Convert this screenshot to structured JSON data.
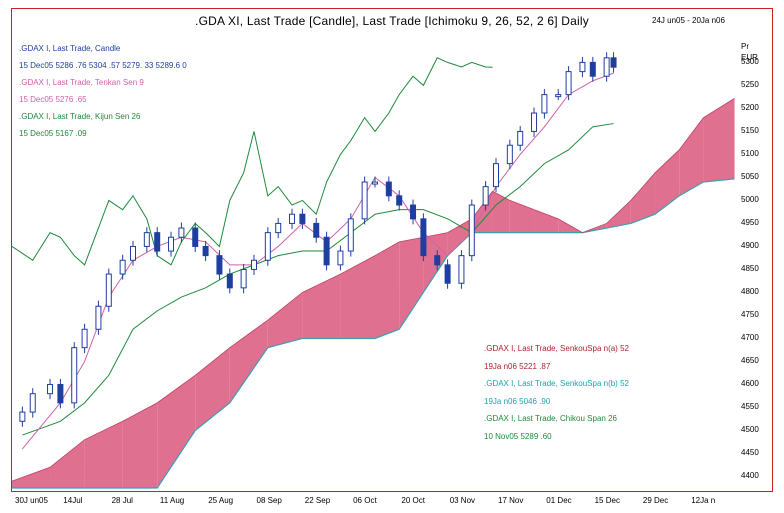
{
  "header": {
    "title": ".GDA XI, Last Trade [Candle], Last Trade [Ichimoku 9, 26, 52, 2  6] Daily",
    "date_range": "24J un05 - 20Ja   n06"
  },
  "legend_top": [
    {
      "text": ".GDAX I, Last Trade, Candle",
      "color": "#1f3fa0"
    },
    {
      "text": "15 Dec05 5286   .76 5304   .57 5279. 33 5289.6 0",
      "color": "#1f3fa0"
    },
    {
      "text": ".GDAX I, Last Trade, Tenkan Sen 9",
      "color": "#d060a8"
    },
    {
      "text": "15 Dec05 5276   .65",
      "color": "#d060a8"
    },
    {
      "text": ".GDAX I, Last Trade, Kijun Sen 26",
      "color": "#1e8a3a"
    },
    {
      "text": "15 Dec05 5167   .09",
      "color": "#1e8a3a"
    }
  ],
  "legend_bottom": [
    {
      "text": ".GDAX I, Last Trade, SenkouSpa   n(a) 52",
      "color": "#b02030"
    },
    {
      "text": "19Ja  n06 5221   .87",
      "color": "#b02030"
    },
    {
      "text": ".GDAX I, Last Trade, SenkouSpa   n(b) 52",
      "color": "#20a0b0"
    },
    {
      "text": "19Ja  n06 5046   .90",
      "color": "#20a0b0"
    },
    {
      "text": ".GDAX I, Last Trade, Chikou Span 26",
      "color": "#1e8a3a"
    },
    {
      "text": "10 Nov05 5289   .60",
      "color": "#1e8a3a"
    }
  ],
  "y_axis": {
    "unit_line1": "Pr",
    "unit_line2": "EUR",
    "ticks": [
      "5300",
      "5250",
      "5200",
      "5150",
      "5100",
      "5050",
      "5000",
      "4950",
      "4900",
      "4850",
      "4800",
      "4750",
      "4700",
      "4650",
      "4600",
      "4550",
      "4500",
      "4450",
      "4400"
    ]
  },
  "x_axis": {
    "ticks": [
      "30J un05",
      "14Jul",
      "28 Jul",
      "11 Aug",
      "25 Aug",
      "08 Sep",
      "22 Sep",
      "06 Oct",
      "20 Oct",
      "03 Nov",
      "17 Nov",
      "01 Dec",
      "15 Dec",
      "29 Dec",
      "12Ja n"
    ]
  },
  "colors": {
    "frame": "#cc2020",
    "candle": "#1f3fa0",
    "tenkan": "#d060a8",
    "kijun": "#1e8a3a",
    "chikou": "#1e8a3a",
    "cloud_bull": "#e07090",
    "cloud_bear": "#40c0d0",
    "span_b_edge": "#3aa0b0"
  },
  "chart_data": {
    "type": "candlestick",
    "title": ".GDA XI, Last Trade [Candle], Last Trade [Ichimoku 9, 26, 52, 2  6] Daily",
    "xlabel": "",
    "ylabel": "Pr EUR",
    "ylim": [
      4375,
      5340
    ],
    "x_start": "2005-06-24",
    "x_end": "2006-01-20",
    "close_series": {
      "name": ".GDAX I, Last Trade, Candle",
      "points": [
        [
          "2005-06-27",
          4540
        ],
        [
          "2005-06-30",
          4580
        ],
        [
          "2005-07-05",
          4600
        ],
        [
          "2005-07-08",
          4560
        ],
        [
          "2005-07-12",
          4680
        ],
        [
          "2005-07-15",
          4720
        ],
        [
          "2005-07-19",
          4770
        ],
        [
          "2005-07-22",
          4840
        ],
        [
          "2005-07-26",
          4870
        ],
        [
          "2005-07-29",
          4900
        ],
        [
          "2005-08-02",
          4930
        ],
        [
          "2005-08-05",
          4890
        ],
        [
          "2005-08-09",
          4920
        ],
        [
          "2005-08-12",
          4940
        ],
        [
          "2005-08-16",
          4900
        ],
        [
          "2005-08-19",
          4880
        ],
        [
          "2005-08-23",
          4840
        ],
        [
          "2005-08-26",
          4810
        ],
        [
          "2005-08-30",
          4850
        ],
        [
          "2005-09-02",
          4870
        ],
        [
          "2005-09-06",
          4930
        ],
        [
          "2005-09-09",
          4950
        ],
        [
          "2005-09-13",
          4970
        ],
        [
          "2005-09-16",
          4950
        ],
        [
          "2005-09-20",
          4920
        ],
        [
          "2005-09-23",
          4860
        ],
        [
          "2005-09-27",
          4890
        ],
        [
          "2005-09-30",
          4960
        ],
        [
          "2005-10-04",
          5040
        ],
        [
          "2005-10-07",
          5040
        ],
        [
          "2005-10-11",
          5010
        ],
        [
          "2005-10-14",
          4990
        ],
        [
          "2005-10-18",
          4960
        ],
        [
          "2005-10-21",
          4880
        ],
        [
          "2005-10-25",
          4860
        ],
        [
          "2005-10-28",
          4820
        ],
        [
          "2005-11-01",
          4880
        ],
        [
          "2005-11-04",
          4990
        ],
        [
          "2005-11-08",
          5030
        ],
        [
          "2005-11-11",
          5080
        ],
        [
          "2005-11-15",
          5120
        ],
        [
          "2005-11-18",
          5150
        ],
        [
          "2005-11-22",
          5190
        ],
        [
          "2005-11-25",
          5230
        ],
        [
          "2005-11-29",
          5230
        ],
        [
          "2005-12-02",
          5280
        ],
        [
          "2005-12-06",
          5300
        ],
        [
          "2005-12-09",
          5270
        ],
        [
          "2005-12-13",
          5310
        ],
        [
          "2005-12-15",
          5289.6
        ]
      ],
      "last": {
        "date": "2005-12-15",
        "open": 5286.76,
        "high": 5304.57,
        "low": 5279.33,
        "close": 5289.6
      }
    },
    "series": [
      {
        "name": ".GDAX I, Last Trade, Tenkan Sen 9",
        "points": [
          [
            "2005-06-27",
            4460
          ],
          [
            "2005-07-08",
            4560
          ],
          [
            "2005-07-15",
            4650
          ],
          [
            "2005-07-22",
            4790
          ],
          [
            "2005-07-29",
            4870
          ],
          [
            "2005-08-05",
            4900
          ],
          [
            "2005-08-12",
            4920
          ],
          [
            "2005-08-19",
            4910
          ],
          [
            "2005-08-26",
            4860
          ],
          [
            "2005-09-02",
            4860
          ],
          [
            "2005-09-09",
            4900
          ],
          [
            "2005-09-16",
            4950
          ],
          [
            "2005-09-23",
            4910
          ],
          [
            "2005-09-30",
            4960
          ],
          [
            "2005-10-07",
            5050
          ],
          [
            "2005-10-14",
            5010
          ],
          [
            "2005-10-21",
            4930
          ],
          [
            "2005-10-28",
            4880
          ],
          [
            "2005-11-04",
            4930
          ],
          [
            "2005-11-11",
            5030
          ],
          [
            "2005-11-18",
            5100
          ],
          [
            "2005-11-25",
            5160
          ],
          [
            "2005-12-02",
            5230
          ],
          [
            "2005-12-09",
            5260
          ],
          [
            "2005-12-15",
            5276.65
          ]
        ]
      },
      {
        "name": ".GDAX I, Last Trade, Kijun Sen 26",
        "points": [
          [
            "2005-06-27",
            4490
          ],
          [
            "2005-07-08",
            4520
          ],
          [
            "2005-07-15",
            4560
          ],
          [
            "2005-07-22",
            4620
          ],
          [
            "2005-07-29",
            4720
          ],
          [
            "2005-08-05",
            4760
          ],
          [
            "2005-08-12",
            4790
          ],
          [
            "2005-08-19",
            4810
          ],
          [
            "2005-08-26",
            4840
          ],
          [
            "2005-09-02",
            4860
          ],
          [
            "2005-09-09",
            4880
          ],
          [
            "2005-09-16",
            4890
          ],
          [
            "2005-09-23",
            4890
          ],
          [
            "2005-09-30",
            4930
          ],
          [
            "2005-10-07",
            4970
          ],
          [
            "2005-10-14",
            4980
          ],
          [
            "2005-10-21",
            4980
          ],
          [
            "2005-10-28",
            4960
          ],
          [
            "2005-11-04",
            4930
          ],
          [
            "2005-11-11",
            4990
          ],
          [
            "2005-11-18",
            5030
          ],
          [
            "2005-11-25",
            5080
          ],
          [
            "2005-12-02",
            5110
          ],
          [
            "2005-12-09",
            5160
          ],
          [
            "2005-12-15",
            5167.09
          ]
        ]
      },
      {
        "name": ".GDAX I, Last Trade, Chikou Span 26",
        "points": [
          [
            "2005-06-24",
            4900
          ],
          [
            "2005-06-30",
            4870
          ],
          [
            "2005-07-05",
            4930
          ],
          [
            "2005-07-08",
            4920
          ],
          [
            "2005-07-12",
            4880
          ],
          [
            "2005-07-15",
            4860
          ],
          [
            "2005-07-19",
            4940
          ],
          [
            "2005-07-22",
            5000
          ],
          [
            "2005-07-26",
            4980
          ],
          [
            "2005-07-29",
            5010
          ],
          [
            "2005-08-02",
            4960
          ],
          [
            "2005-08-05",
            4880
          ],
          [
            "2005-08-09",
            4860
          ],
          [
            "2005-08-12",
            4910
          ],
          [
            "2005-08-16",
            4950
          ],
          [
            "2005-08-19",
            4930
          ],
          [
            "2005-08-23",
            4900
          ],
          [
            "2005-08-26",
            5000
          ],
          [
            "2005-08-30",
            5060
          ],
          [
            "2005-09-02",
            5150
          ],
          [
            "2005-09-06",
            5010
          ],
          [
            "2005-09-09",
            5030
          ],
          [
            "2005-09-13",
            4990
          ],
          [
            "2005-09-16",
            5000
          ],
          [
            "2005-09-20",
            4970
          ],
          [
            "2005-09-23",
            5040
          ],
          [
            "2005-09-27",
            5100
          ],
          [
            "2005-09-30",
            5130
          ],
          [
            "2005-10-04",
            5180
          ],
          [
            "2005-10-07",
            5150
          ],
          [
            "2005-10-11",
            5190
          ],
          [
            "2005-10-14",
            5230
          ],
          [
            "2005-10-18",
            5270
          ],
          [
            "2005-10-21",
            5250
          ],
          [
            "2005-10-25",
            5310
          ],
          [
            "2005-10-28",
            5300
          ],
          [
            "2005-11-01",
            5290
          ],
          [
            "2005-11-04",
            5300
          ],
          [
            "2005-11-08",
            5290
          ],
          [
            "2005-11-10",
            5289.6
          ]
        ]
      },
      {
        "name": ".GDAX I, Last Trade, SenkouSpa   n(a) 52",
        "points": [
          [
            "2005-06-24",
            4390
          ],
          [
            "2005-07-05",
            4420
          ],
          [
            "2005-07-15",
            4480
          ],
          [
            "2005-07-26",
            4520
          ],
          [
            "2005-08-05",
            4560
          ],
          [
            "2005-08-16",
            4620
          ],
          [
            "2005-08-26",
            4680
          ],
          [
            "2005-09-06",
            4740
          ],
          [
            "2005-09-16",
            4800
          ],
          [
            "2005-09-27",
            4840
          ],
          [
            "2005-10-07",
            4880
          ],
          [
            "2005-10-14",
            4910
          ],
          [
            "2005-10-21",
            4920
          ],
          [
            "2005-10-28",
            4930
          ],
          [
            "2005-11-04",
            4960
          ],
          [
            "2005-11-10",
            5020
          ],
          [
            "2005-11-15",
            5000
          ],
          [
            "2005-11-22",
            4980
          ],
          [
            "2005-11-29",
            4960
          ],
          [
            "2005-12-06",
            4930
          ],
          [
            "2005-12-13",
            4950
          ],
          [
            "2005-12-20",
            5000
          ],
          [
            "2005-12-27",
            5060
          ],
          [
            "2006-01-03",
            5110
          ],
          [
            "2006-01-10",
            5180
          ],
          [
            "2006-01-19",
            5221.87
          ]
        ]
      },
      {
        "name": ".GDAX I, Last Trade, SenkouSpa   n(b) 52",
        "points": [
          [
            "2005-06-24",
            4375
          ],
          [
            "2005-07-05",
            4375
          ],
          [
            "2005-07-15",
            4375
          ],
          [
            "2005-07-26",
            4375
          ],
          [
            "2005-08-05",
            4375
          ],
          [
            "2005-08-16",
            4500
          ],
          [
            "2005-08-26",
            4560
          ],
          [
            "2005-09-06",
            4680
          ],
          [
            "2005-09-16",
            4700
          ],
          [
            "2005-09-27",
            4700
          ],
          [
            "2005-10-07",
            4700
          ],
          [
            "2005-10-14",
            4720
          ],
          [
            "2005-10-21",
            4800
          ],
          [
            "2005-10-28",
            4880
          ],
          [
            "2005-11-04",
            4930
          ],
          [
            "2005-11-10",
            4930
          ],
          [
            "2005-11-15",
            4930
          ],
          [
            "2005-11-22",
            4930
          ],
          [
            "2005-11-29",
            4930
          ],
          [
            "2005-12-06",
            4930
          ],
          [
            "2005-12-13",
            4940
          ],
          [
            "2005-12-20",
            4950
          ],
          [
            "2005-12-27",
            4970
          ],
          [
            "2006-01-03",
            5010
          ],
          [
            "2006-01-10",
            5040
          ],
          [
            "2006-01-19",
            5046.9
          ]
        ]
      }
    ]
  }
}
